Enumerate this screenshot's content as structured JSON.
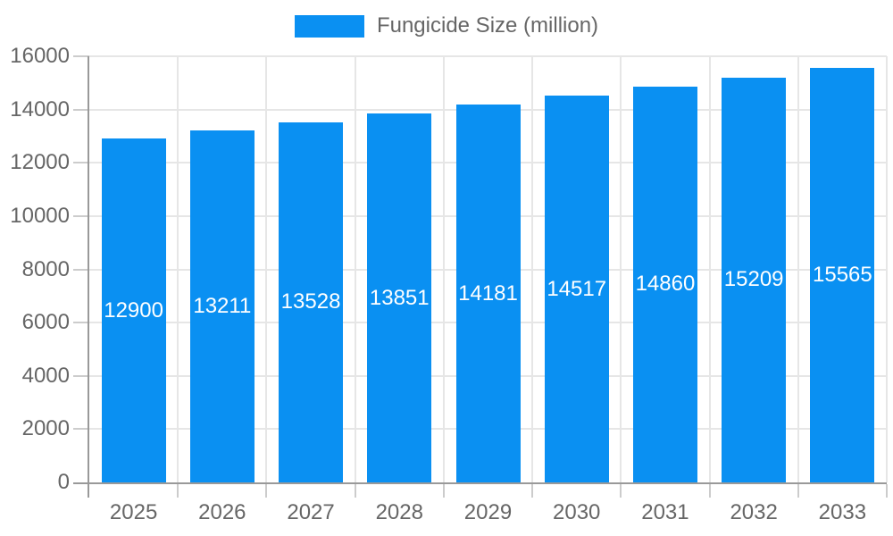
{
  "chart_data": {
    "type": "bar",
    "title": "",
    "legend": "Fungicide Size (million)",
    "legend_position": "top",
    "categories": [
      "2025",
      "2026",
      "2027",
      "2028",
      "2029",
      "2030",
      "2031",
      "2032",
      "2033"
    ],
    "values": [
      12900,
      13211,
      13528,
      13851,
      14181,
      14517,
      14860,
      15209,
      15565
    ],
    "xlabel": "",
    "ylabel": "",
    "ylim": [
      0,
      16000
    ],
    "yticks": [
      0,
      2000,
      4000,
      6000,
      8000,
      10000,
      12000,
      14000,
      16000
    ],
    "grid": true,
    "value_label_position": "inside-center",
    "colors": {
      "bar": "#0a90f2",
      "grid": "#e6e6e6",
      "tick": "#cccccc",
      "axis_line": "#999999",
      "axis_text": "#666666",
      "value_text": "#ffffff",
      "background": "#ffffff"
    }
  }
}
